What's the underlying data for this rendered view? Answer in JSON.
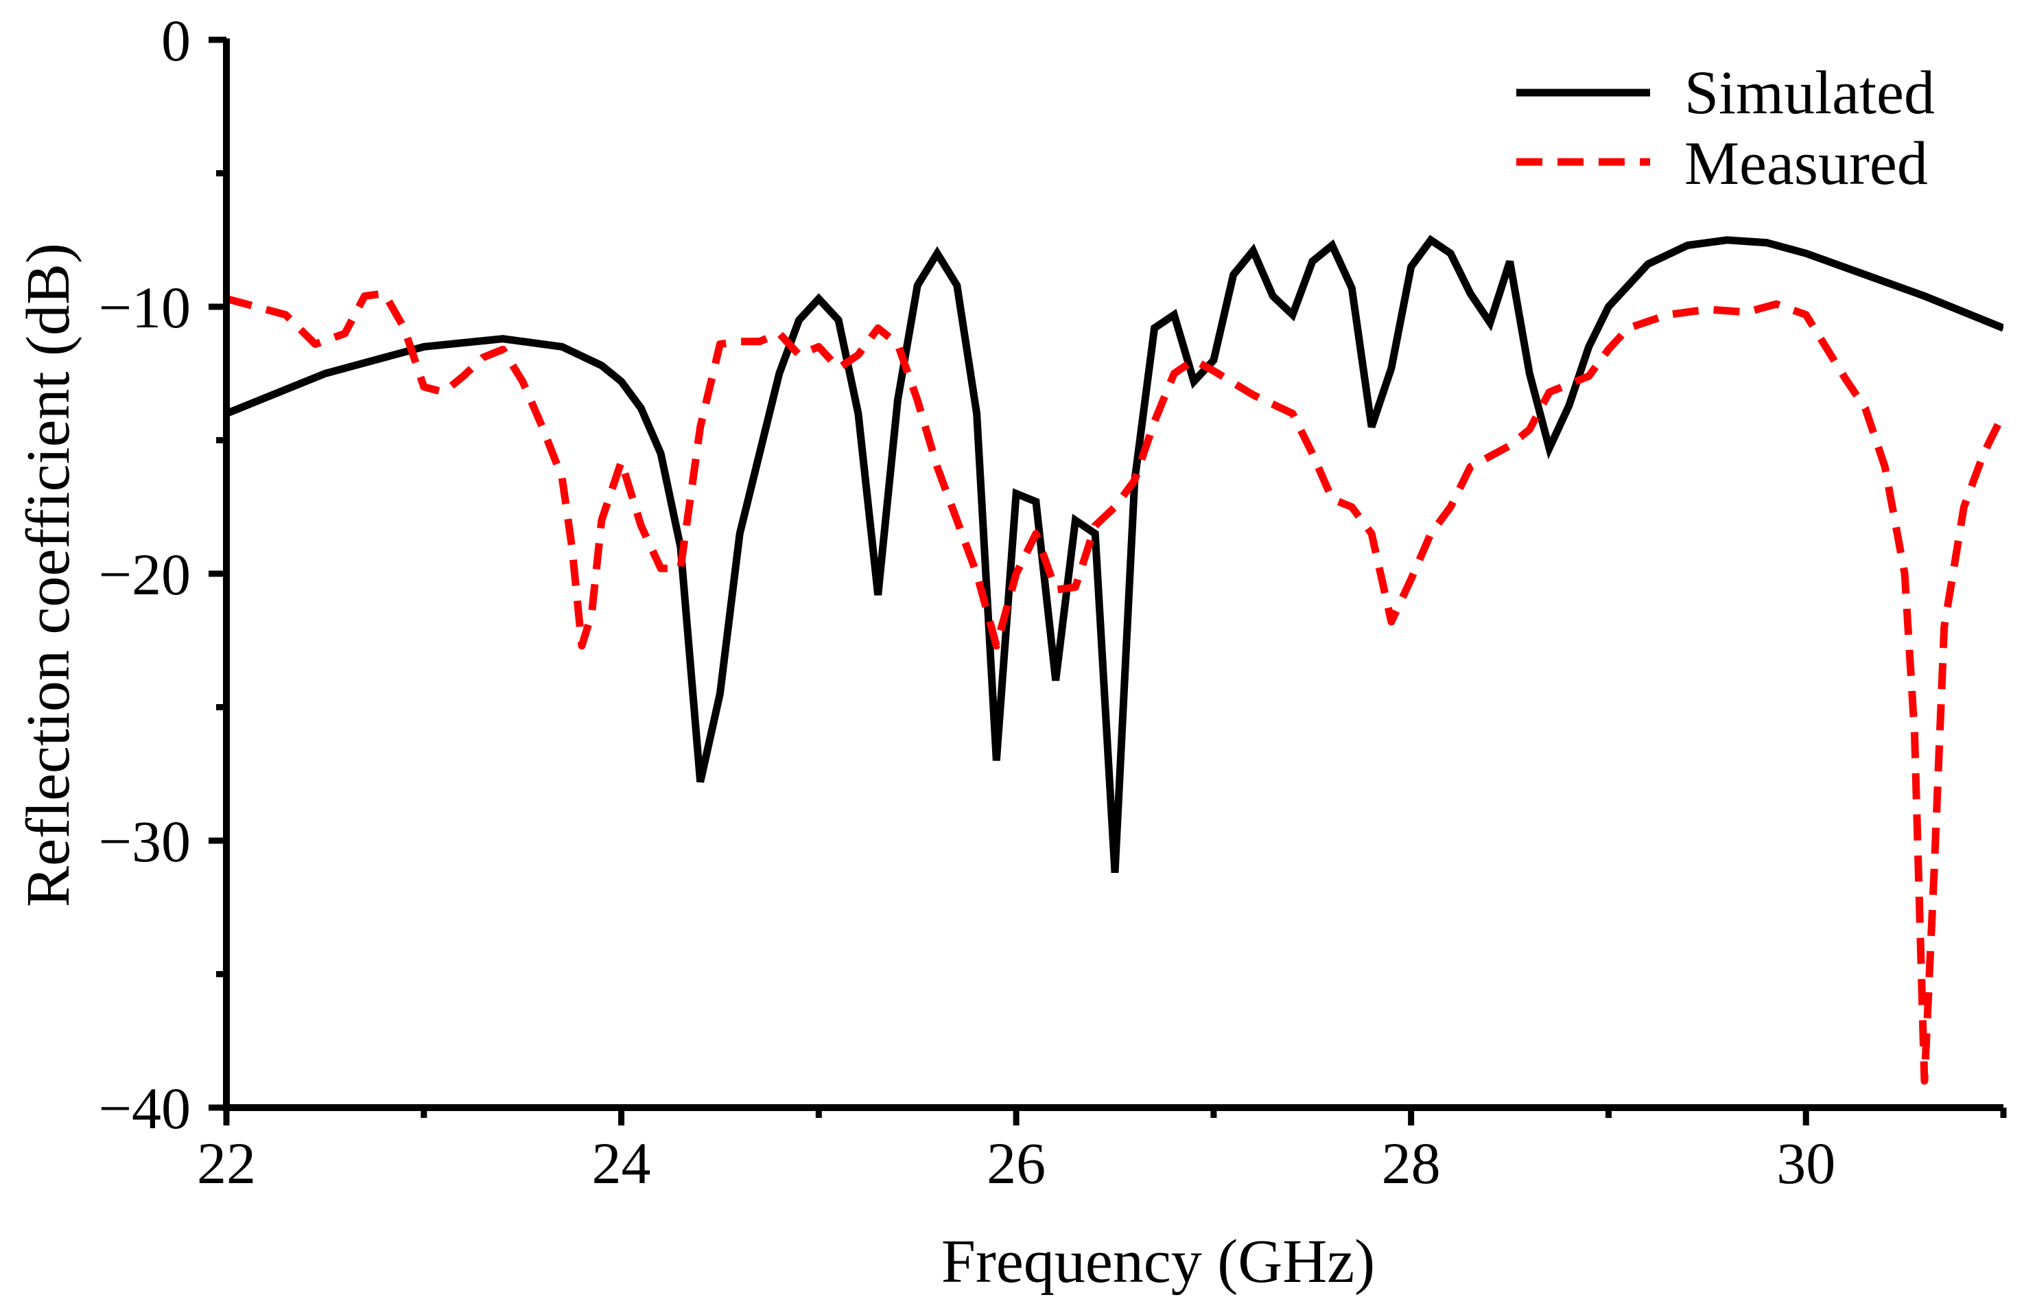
{
  "chart_data": {
    "type": "line",
    "title": "",
    "xlabel": "Frequency (GHz)",
    "ylabel": "Reflection coefficient (dB)",
    "xlim": [
      22,
      31
    ],
    "ylim": [
      -40,
      0
    ],
    "x_ticks": [
      22,
      24,
      26,
      28,
      30
    ],
    "x_tick_labels": [
      "22",
      "24",
      "26",
      "28",
      "30"
    ],
    "x_minor_ticks": [
      23,
      25,
      27,
      29,
      31
    ],
    "y_ticks": [
      -40,
      -30,
      -20,
      -10,
      0
    ],
    "y_tick_labels": [
      "−40",
      "−30",
      "−20",
      "−10",
      "0"
    ],
    "y_minor_ticks": [
      -35,
      -25,
      -15,
      -5
    ],
    "grid": false,
    "legend_position": "top-right",
    "series": [
      {
        "name": "Simulated",
        "color": "#000000",
        "style": "solid",
        "x": [
          22.0,
          22.5,
          23.0,
          23.4,
          23.7,
          23.9,
          24.0,
          24.1,
          24.2,
          24.3,
          24.4,
          24.5,
          24.6,
          24.7,
          24.8,
          24.9,
          25.0,
          25.1,
          25.2,
          25.3,
          25.4,
          25.5,
          25.6,
          25.7,
          25.8,
          25.9,
          26.0,
          26.1,
          26.2,
          26.3,
          26.4,
          26.5,
          26.6,
          26.7,
          26.8,
          26.9,
          27.0,
          27.1,
          27.2,
          27.3,
          27.4,
          27.5,
          27.6,
          27.7,
          27.8,
          27.9,
          28.0,
          28.1,
          28.2,
          28.3,
          28.4,
          28.5,
          28.6,
          28.7,
          28.8,
          28.9,
          29.0,
          29.2,
          29.4,
          29.6,
          29.8,
          30.0,
          30.3,
          30.6,
          31.0
        ],
        "y": [
          -14.0,
          -12.5,
          -11.5,
          -11.2,
          -11.5,
          -12.2,
          -12.8,
          -13.8,
          -15.5,
          -19.0,
          -27.8,
          -24.5,
          -18.5,
          -15.5,
          -12.5,
          -10.5,
          -9.7,
          -10.5,
          -14.0,
          -20.8,
          -13.5,
          -9.2,
          -8.0,
          -9.2,
          -14.0,
          -27.0,
          -17.0,
          -17.3,
          -24.0,
          -18.0,
          -18.5,
          -31.2,
          -16.5,
          -10.8,
          -10.3,
          -12.8,
          -12.0,
          -8.8,
          -7.9,
          -9.6,
          -10.3,
          -8.3,
          -7.7,
          -9.3,
          -14.5,
          -12.3,
          -8.5,
          -7.5,
          -8.0,
          -9.5,
          -10.6,
          -8.3,
          -12.5,
          -15.3,
          -13.7,
          -11.5,
          -10.0,
          -8.4,
          -7.7,
          -7.5,
          -7.6,
          -8.0,
          -8.8,
          -9.6,
          -10.8
        ]
      },
      {
        "name": "Measured",
        "color": "#ff0000",
        "style": "dashed",
        "x": [
          22.0,
          22.3,
          22.45,
          22.6,
          22.7,
          22.8,
          22.9,
          23.0,
          23.1,
          23.2,
          23.3,
          23.4,
          23.5,
          23.6,
          23.7,
          23.75,
          23.8,
          23.85,
          23.9,
          24.0,
          24.1,
          24.2,
          24.3,
          24.4,
          24.5,
          24.6,
          24.7,
          24.8,
          24.9,
          25.0,
          25.1,
          25.2,
          25.3,
          25.4,
          25.5,
          25.6,
          25.7,
          25.8,
          25.9,
          26.0,
          26.1,
          26.2,
          26.3,
          26.4,
          26.5,
          26.6,
          26.7,
          26.8,
          26.9,
          27.0,
          27.2,
          27.4,
          27.5,
          27.6,
          27.7,
          27.8,
          27.9,
          28.0,
          28.1,
          28.2,
          28.3,
          28.5,
          28.6,
          28.7,
          28.9,
          29.0,
          29.1,
          29.3,
          29.5,
          29.7,
          29.85,
          30.0,
          30.1,
          30.2,
          30.3,
          30.4,
          30.5,
          30.55,
          30.6,
          30.65,
          30.7,
          30.8,
          30.9,
          31.0
        ],
        "y": [
          -9.7,
          -10.3,
          -11.4,
          -11.0,
          -9.6,
          -9.5,
          -10.8,
          -13.0,
          -13.2,
          -12.6,
          -11.9,
          -11.6,
          -12.8,
          -14.5,
          -16.4,
          -19.0,
          -22.7,
          -21.5,
          -18.0,
          -15.8,
          -18.2,
          -19.8,
          -19.8,
          -14.5,
          -11.4,
          -11.3,
          -11.3,
          -11.0,
          -11.8,
          -11.5,
          -12.3,
          -11.8,
          -10.8,
          -11.4,
          -13.5,
          -16.0,
          -18.0,
          -20.0,
          -22.7,
          -20.0,
          -18.5,
          -20.6,
          -20.5,
          -18.2,
          -17.5,
          -16.5,
          -14.3,
          -12.5,
          -12.0,
          -12.4,
          -13.3,
          -14.0,
          -15.5,
          -17.2,
          -17.5,
          -18.5,
          -21.8,
          -20.2,
          -18.5,
          -17.5,
          -16.0,
          -15.2,
          -14.6,
          -13.2,
          -12.6,
          -11.6,
          -10.8,
          -10.3,
          -10.1,
          -10.2,
          -9.9,
          -10.3,
          -11.5,
          -12.7,
          -13.8,
          -16.0,
          -20.0,
          -26.0,
          -39.0,
          -31.0,
          -22.0,
          -17.5,
          -15.5,
          -14.0
        ]
      }
    ]
  }
}
